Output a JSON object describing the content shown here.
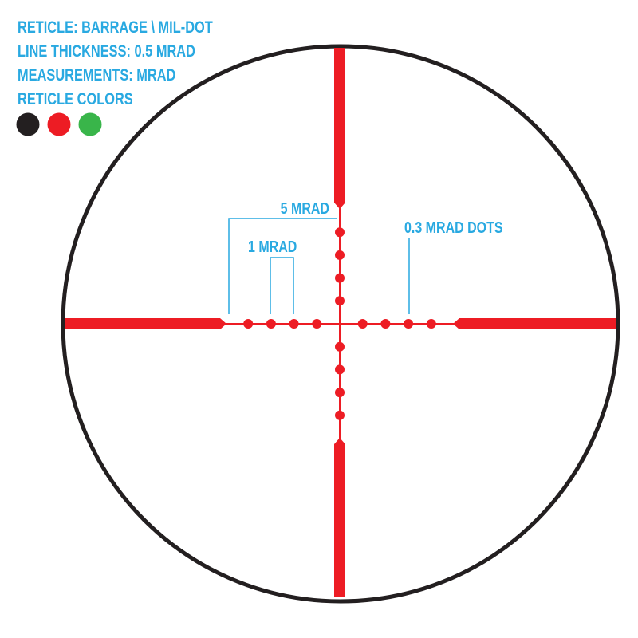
{
  "specs": {
    "reticle": "RETICLE: BARRAGE \\ MIL-DOT",
    "line_thickness": "LINE THICKNESS: 0.5 MRAD",
    "measurements": "MEASUREMENTS: MRAD",
    "colors_label": "RETICLE COLORS"
  },
  "reticle_colors": [
    "#231f20",
    "#ed1c24",
    "#39b54a"
  ],
  "annotations": {
    "five_mrad": "5 MRAD",
    "one_mrad": "1 MRAD",
    "dots": "0.3 MRAD DOTS"
  },
  "colors": {
    "reticle": "#ed1c24",
    "annotation": "#29a9e1",
    "ring": "#231f20"
  },
  "dots_per_arm": 4
}
